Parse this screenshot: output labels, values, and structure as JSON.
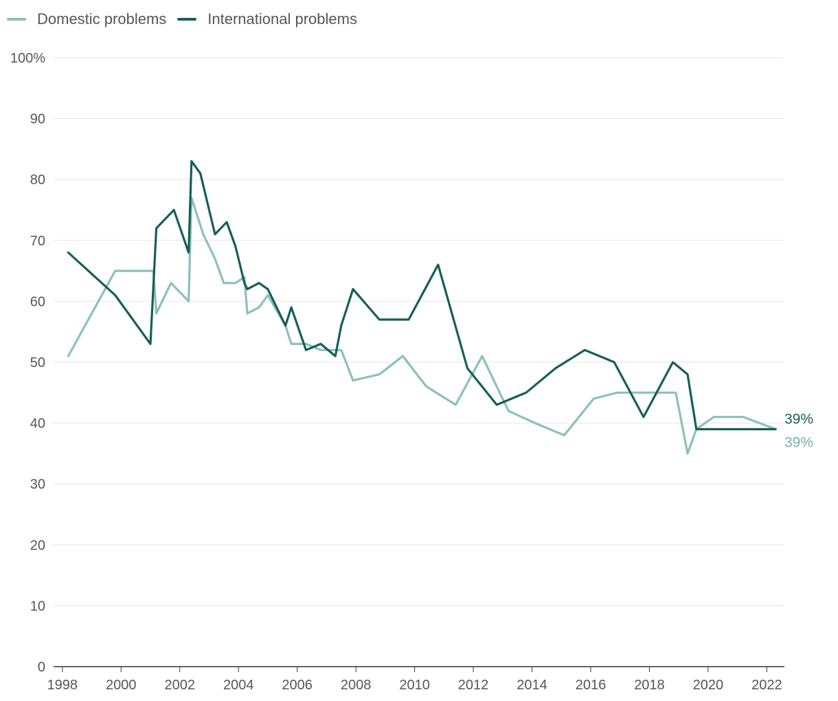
{
  "legend": [
    {
      "name": "Domestic problems",
      "color": "#8cc0bb"
    },
    {
      "name": "International problems",
      "color": "#165e59"
    }
  ],
  "chart_data": {
    "type": "line",
    "title": "",
    "xlabel": "",
    "ylabel": "",
    "ylim": [
      0,
      100
    ],
    "xlim": [
      1997.7,
      2022.6
    ],
    "grid": true,
    "y_ticks": [
      0,
      10,
      20,
      30,
      40,
      50,
      60,
      70,
      80,
      90,
      100
    ],
    "y_tick_labels": [
      "0",
      "10",
      "20",
      "30",
      "40",
      "50",
      "60",
      "70",
      "80",
      "90",
      "100%"
    ],
    "x_ticks": [
      1998,
      2000,
      2002,
      2004,
      2006,
      2008,
      2010,
      2012,
      2014,
      2016,
      2018,
      2020,
      2022
    ],
    "x_tick_labels": [
      "1998",
      "2000",
      "2002",
      "2004",
      "2006",
      "2008",
      "2010",
      "2012",
      "2014",
      "2016",
      "2018",
      "2020",
      "2022"
    ],
    "series": [
      {
        "name": "Domestic problems",
        "color": "#8cc0bb",
        "end_label": "39%",
        "x": [
          1998.2,
          1999.8,
          2001.1,
          2001.2,
          2001.7,
          2002.3,
          2002.4,
          2002.8,
          2003.2,
          2003.5,
          2003.9,
          2004.2,
          2004.3,
          2004.7,
          2005.0,
          2005.6,
          2005.8,
          2006.3,
          2006.8,
          2007.3,
          2007.5,
          2007.9,
          2008.8,
          2009.6,
          2010.4,
          2011.4,
          2012.3,
          2013.2,
          2014.1,
          2015.1,
          2016.1,
          2016.9,
          2017.9,
          2018.9,
          2019.3,
          2019.6,
          2020.2,
          2021.2,
          2022.3
        ],
        "values": [
          51,
          65,
          65,
          58,
          63,
          60,
          77,
          71,
          67,
          63,
          63,
          64,
          58,
          59,
          61,
          56,
          53,
          53,
          52,
          52,
          52,
          47,
          48,
          51,
          46,
          43,
          51,
          42,
          40,
          38,
          44,
          45,
          45,
          45,
          35,
          39,
          41,
          41,
          39
        ]
      },
      {
        "name": "International problems",
        "color": "#165e59",
        "end_label": "39%",
        "x": [
          1998.2,
          1999.8,
          2001.0,
          2001.2,
          2001.8,
          2002.3,
          2002.4,
          2002.7,
          2003.2,
          2003.6,
          2003.9,
          2004.2,
          2004.3,
          2004.7,
          2005.0,
          2005.6,
          2005.8,
          2006.3,
          2006.8,
          2007.3,
          2007.5,
          2007.9,
          2008.8,
          2009.8,
          2010.8,
          2011.8,
          2012.8,
          2013.8,
          2014.8,
          2015.8,
          2016.8,
          2017.8,
          2018.8,
          2019.3,
          2019.6,
          2020.2,
          2021.2,
          2022.3
        ],
        "values": [
          68,
          61,
          53,
          72,
          75,
          68,
          83,
          81,
          71,
          73,
          69,
          63,
          62,
          63,
          62,
          56,
          59,
          52,
          53,
          51,
          56,
          62,
          57,
          57,
          66,
          49,
          43,
          45,
          49,
          52,
          50,
          41,
          50,
          48,
          39,
          39,
          39,
          39
        ]
      }
    ]
  }
}
